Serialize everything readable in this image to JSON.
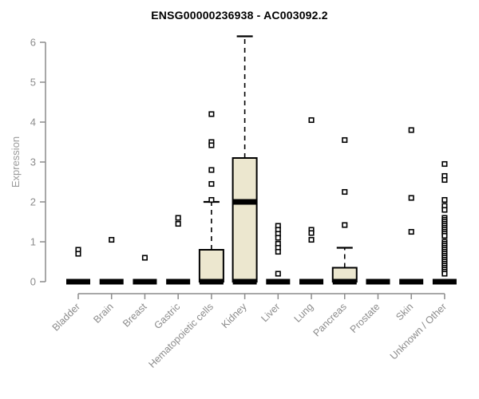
{
  "chart_data": {
    "type": "boxplot",
    "title": "ENSG00000236938 - AC003092.2",
    "ylabel": "Expression",
    "ylim": [
      0,
      6
    ],
    "yticks": [
      0,
      1,
      2,
      3,
      4,
      5,
      6
    ],
    "grid": false,
    "categories": [
      "Bladder",
      "Brain",
      "Breast",
      "Gastric",
      "Hematopoietic cells",
      "Kidney",
      "Liver",
      "Lung",
      "Pancreas",
      "Prostate",
      "Skin",
      "Unknown / Other"
    ],
    "series": [
      {
        "category": "Bladder",
        "q1": 0,
        "median": 0,
        "q3": 0,
        "whisker_low": 0,
        "whisker_high": 0,
        "outliers": [
          0.8,
          0.7
        ]
      },
      {
        "category": "Brain",
        "q1": 0,
        "median": 0,
        "q3": 0,
        "whisker_low": 0,
        "whisker_high": 0,
        "outliers": [
          1.05
        ]
      },
      {
        "category": "Breast",
        "q1": 0,
        "median": 0,
        "q3": 0,
        "whisker_low": 0,
        "whisker_high": 0,
        "outliers": [
          0.6
        ]
      },
      {
        "category": "Gastric",
        "q1": 0,
        "median": 0,
        "q3": 0,
        "whisker_low": 0,
        "whisker_high": 0,
        "outliers": [
          1.6,
          1.45
        ]
      },
      {
        "category": "Hematopoietic cells",
        "q1": 0,
        "median": 0,
        "q3": 0.8,
        "whisker_low": 0,
        "whisker_high": 2.0,
        "outliers": [
          4.2,
          3.5,
          3.42,
          2.8,
          2.45,
          2.05
        ]
      },
      {
        "category": "Kidney",
        "q1": 0,
        "median": 2.0,
        "q3": 3.1,
        "whisker_low": 0,
        "whisker_high": 6.15,
        "outliers": []
      },
      {
        "category": "Liver",
        "q1": 0,
        "median": 0,
        "q3": 0,
        "whisker_low": 0,
        "whisker_high": 0,
        "outliers": [
          1.4,
          1.3,
          1.2,
          1.1,
          0.95,
          0.85,
          0.75,
          0.2
        ]
      },
      {
        "category": "Lung",
        "q1": 0,
        "median": 0,
        "q3": 0,
        "whisker_low": 0,
        "whisker_high": 0,
        "outliers": [
          4.05,
          1.3,
          1.22,
          1.05
        ]
      },
      {
        "category": "Pancreas",
        "q1": 0,
        "median": 0,
        "q3": 0.35,
        "whisker_low": 0,
        "whisker_high": 0.85,
        "outliers": [
          3.55,
          2.25,
          1.42
        ]
      },
      {
        "category": "Prostate",
        "q1": 0,
        "median": 0,
        "q3": 0,
        "whisker_low": 0,
        "whisker_high": 0,
        "outliers": []
      },
      {
        "category": "Skin",
        "q1": 0,
        "median": 0,
        "q3": 0,
        "whisker_low": 0,
        "whisker_high": 0,
        "outliers": [
          3.8,
          2.1,
          1.25
        ]
      },
      {
        "category": "Unknown / Other",
        "q1": 0,
        "median": 0,
        "q3": 0,
        "whisker_low": 0,
        "whisker_high": 0,
        "outliers": [
          2.95,
          2.65,
          2.55,
          2.05,
          1.9,
          1.8,
          1.6,
          1.55,
          1.5,
          1.45,
          1.4,
          1.35,
          1.3,
          1.25,
          1.2,
          1.15,
          1.0,
          0.95,
          0.9,
          0.85,
          0.8,
          0.75,
          0.7,
          0.65,
          0.6,
          0.55,
          0.5,
          0.45,
          0.4,
          0.35,
          0.3,
          0.25,
          0.2
        ]
      }
    ],
    "colors": {
      "box_fill": "#ECE7CF",
      "box_border": "#000000",
      "median": "#000000",
      "whisker": "#000000",
      "outlier_border": "#000000",
      "outlier_fill": "#FFFFFF",
      "axis": "#8C8C8C",
      "tick_label": "#8C8C8C",
      "title": "#000000"
    }
  }
}
